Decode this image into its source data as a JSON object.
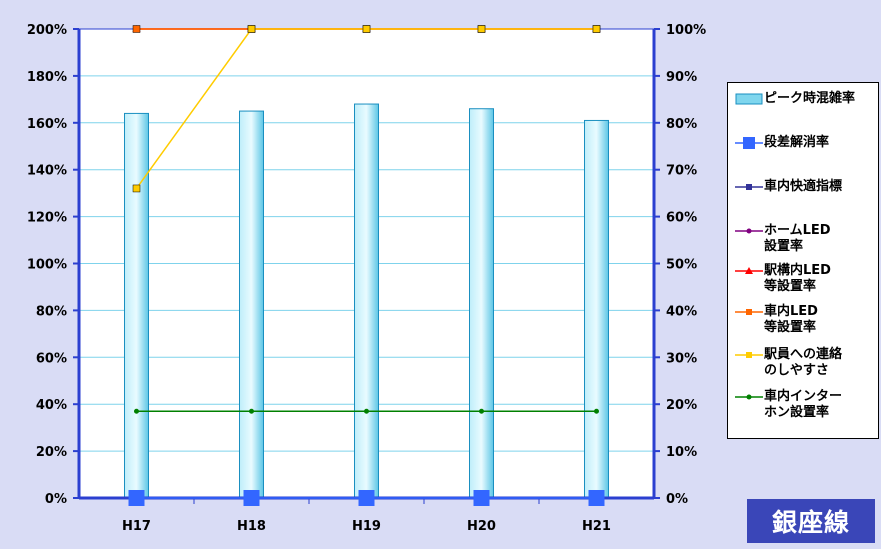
{
  "chart_data": {
    "type": "bar",
    "categories": [
      "H17",
      "H18",
      "H19",
      "H20",
      "H21"
    ],
    "left_axis": {
      "ylim": [
        0,
        200
      ],
      "ticks": [
        "0%",
        "20%",
        "40%",
        "60%",
        "80%",
        "100%",
        "120%",
        "140%",
        "160%",
        "180%",
        "200%"
      ]
    },
    "right_axis": {
      "ylim": [
        0,
        100
      ],
      "ticks": [
        "0%",
        "10%",
        "20%",
        "30%",
        "40%",
        "50%",
        "60%",
        "70%",
        "80%",
        "90%",
        "100%"
      ]
    },
    "series": [
      {
        "name": "ピーク時混雑率",
        "type": "bar",
        "axis": "left",
        "color": "#7fd6ee",
        "values": [
          164,
          165,
          168,
          166,
          161
        ]
      },
      {
        "name": "段差解消率",
        "type": "line",
        "axis": "right",
        "color": "#3366ff",
        "marker": "square-large",
        "values": [
          0,
          0,
          0,
          0,
          0
        ]
      },
      {
        "name": "車内快適指標",
        "type": "line",
        "axis": "right",
        "color": "#333399",
        "marker": "square",
        "values": [
          null,
          null,
          null,
          null,
          null
        ]
      },
      {
        "name": "ホームLED\n設置率",
        "type": "line",
        "axis": "right",
        "color": "#800080",
        "marker": "circle",
        "values": [
          null,
          null,
          null,
          null,
          null
        ]
      },
      {
        "name": "駅構内LED\n等設置率",
        "type": "line",
        "axis": "right",
        "color": "#ff0000",
        "marker": "triangle",
        "values": [
          100,
          100,
          100,
          100,
          100
        ]
      },
      {
        "name": "車内LED\n等設置率",
        "type": "line",
        "axis": "right",
        "color": "#ff6600",
        "marker": "square",
        "values": [
          100,
          100,
          100,
          100,
          100
        ]
      },
      {
        "name": "駅員への連絡\nのしやすさ",
        "type": "line",
        "axis": "right",
        "color": "#ffcc00",
        "marker": "square",
        "values": [
          66,
          100,
          100,
          100,
          100
        ]
      },
      {
        "name": "車内インター\nホン設置率",
        "type": "line",
        "axis": "right",
        "color": "#008000",
        "marker": "circle",
        "values": [
          18.5,
          18.5,
          18.5,
          18.5,
          18.5
        ]
      }
    ],
    "grid": true,
    "legend": "right"
  },
  "line_name": "銀座線"
}
